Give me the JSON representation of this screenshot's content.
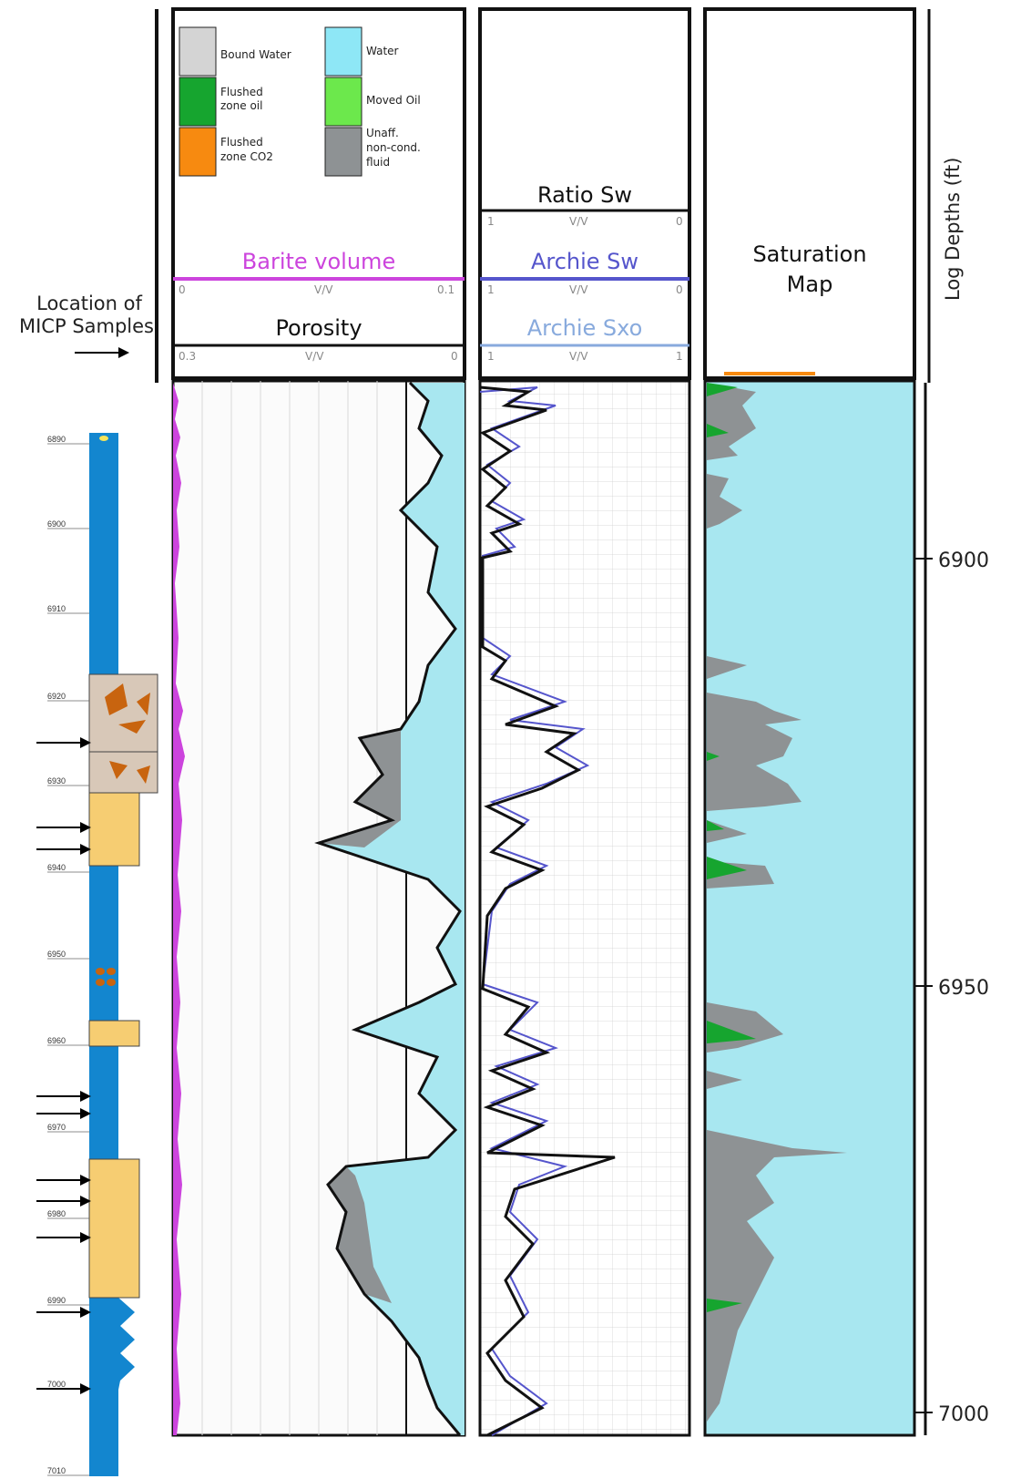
{
  "annotation": {
    "micp_label_line1": "Location of",
    "micp_label_line2": "MICP Samples"
  },
  "legend": {
    "items": [
      {
        "label": "Bound Water",
        "color": "#d4d4d4"
      },
      {
        "label": "Flushed zone oil",
        "color": "#16a52f"
      },
      {
        "label": "Flushed zone CO2",
        "color": "#f78a10"
      },
      {
        "label": "Water",
        "color": "#8ee7f6"
      },
      {
        "label": "Moved Oil",
        "color": "#6ce84c"
      },
      {
        "label": "Unaff. non-cond. fluid",
        "color": "#8e9294"
      }
    ]
  },
  "track1": {
    "barite_title": "Barite volume",
    "barite_min": "0",
    "barite_unit": "V/V",
    "barite_max": "0.1",
    "porosity_title": "Porosity",
    "porosity_min": "0.3",
    "porosity_unit": "V/V",
    "porosity_max": "0",
    "barite_color": "#cc44dd"
  },
  "track2": {
    "ratio_title": "Ratio Sw",
    "ratio_min": "1",
    "ratio_unit": "V/V",
    "ratio_max": "0",
    "archie_sw_title": "Archie Sw",
    "archie_sw_min": "1",
    "archie_sw_unit": "V/V",
    "archie_sw_max": "0",
    "archie_sxo_title": "Archie Sxo",
    "archie_sxo_min": "1",
    "archie_sxo_unit": "V/V",
    "archie_sxo_max": "1",
    "archie_sw_color": "#5555cc",
    "archie_sxo_color": "#88aadd"
  },
  "track3": {
    "title_line1": "Saturation",
    "title_line2": "Map"
  },
  "depth_axis": {
    "title": "Log Depths (ft)",
    "ticks": [
      "6900",
      "6950",
      "7000"
    ]
  },
  "lithology": {
    "depth_labels": [
      "6890",
      "6900",
      "6910",
      "6920",
      "6930",
      "6940",
      "6950",
      "6960",
      "6970",
      "6980",
      "6990",
      "7000",
      "7010"
    ],
    "colors": {
      "water": "#1386cf",
      "sand": "#f6cd72",
      "breccia": "#d8c8b8",
      "clast": "#c8640f"
    }
  }
}
